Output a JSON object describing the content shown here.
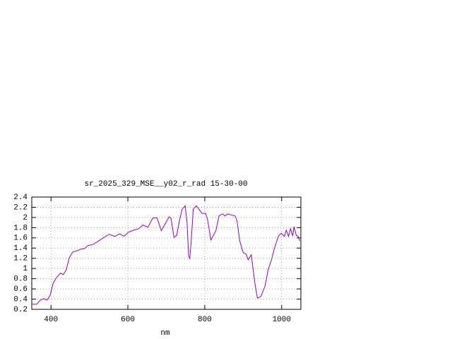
{
  "chart_data": {
    "type": "line",
    "title": "sr_2025_329_MSE__y02_r_rad 15-30-00",
    "x_label": "nm",
    "x": [
      350,
      363,
      372,
      381,
      390,
      398,
      405,
      414,
      425,
      432,
      440,
      447,
      456,
      469,
      478,
      487,
      496,
      509,
      524,
      538,
      551,
      566,
      579,
      590,
      601,
      615,
      628,
      639,
      652,
      665,
      676,
      687,
      696,
      707,
      712,
      720,
      727,
      734,
      741,
      749,
      754,
      758,
      761,
      765,
      770,
      778,
      785,
      793,
      802,
      807,
      816,
      829,
      837,
      846,
      853,
      860,
      869,
      879,
      884,
      891,
      900,
      908,
      913,
      921,
      930,
      937,
      946,
      957,
      965,
      974,
      981,
      992,
      999,
      1007,
      1012,
      1018,
      1023,
      1029,
      1032,
      1038,
      1043,
      1047
    ],
    "values": [
      0.3,
      0.3,
      0.38,
      0.41,
      0.38,
      0.48,
      0.7,
      0.82,
      0.91,
      0.88,
      0.98,
      1.2,
      1.32,
      1.35,
      1.38,
      1.39,
      1.45,
      1.47,
      1.54,
      1.61,
      1.67,
      1.63,
      1.68,
      1.63,
      1.71,
      1.75,
      1.78,
      1.85,
      1.81,
      1.99,
      1.99,
      1.74,
      1.86,
      2.01,
      1.99,
      1.61,
      1.65,
      1.93,
      2.16,
      2.23,
      1.9,
      1.25,
      1.2,
      1.56,
      2.16,
      2.23,
      2.16,
      2.08,
      2.08,
      1.97,
      1.56,
      1.74,
      2.03,
      2.07,
      2.03,
      2.07,
      2.05,
      2.03,
      1.93,
      1.54,
      1.31,
      1.28,
      1.17,
      1.27,
      0.73,
      0.42,
      0.45,
      0.66,
      0.98,
      1.18,
      1.39,
      1.64,
      1.69,
      1.63,
      1.75,
      1.63,
      1.78,
      1.64,
      1.82,
      1.65,
      1.63,
      1.54
    ],
    "color": "#9400d3",
    "xlim": [
      350,
      1050
    ],
    "xticks": [
      400,
      600,
      800,
      1000
    ],
    "ylim": [
      0.2,
      2.4
    ],
    "yticks": [
      0.2,
      0.4,
      0.6,
      0.8,
      1,
      1.2,
      1.4,
      1.6,
      1.8,
      2,
      2.2,
      2.4
    ],
    "grid": true
  }
}
